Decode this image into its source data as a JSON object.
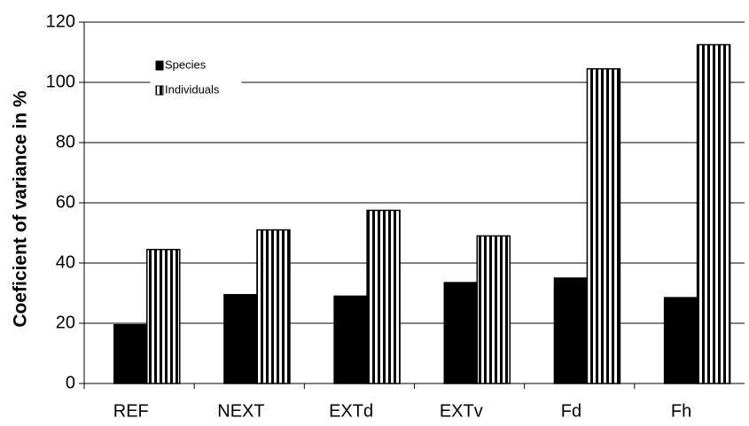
{
  "chart_data": {
    "type": "bar",
    "y_label": "Coeficient of variance in %",
    "categories": [
      "REF",
      "NEXT",
      "EXTd",
      "EXTv",
      "Fd",
      "Fh"
    ],
    "series": [
      {
        "name": "Species",
        "color": "#000000",
        "values": [
          19.5,
          29.5,
          29,
          33.5,
          35,
          28.5
        ]
      },
      {
        "name": "Individuals",
        "color": "#000000",
        "pattern": "vertical-stripes",
        "values": [
          44.5,
          51,
          57.5,
          49,
          104.5,
          112.5
        ]
      }
    ],
    "ylim": [
      0,
      120
    ],
    "yticks": [
      0,
      20,
      40,
      60,
      80,
      100,
      120
    ],
    "grid": true
  }
}
